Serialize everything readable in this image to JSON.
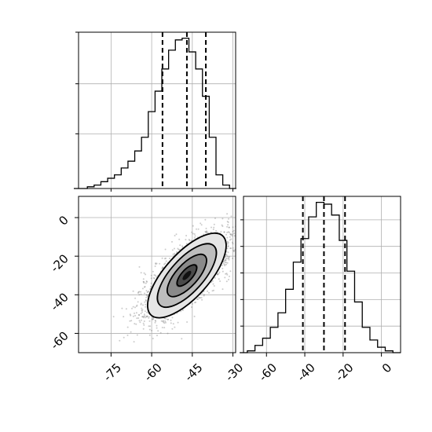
{
  "chart_data": [
    {
      "type": "histogram",
      "variable": "x",
      "x": [
        -87.5,
        -85,
        -82.5,
        -80,
        -77.5,
        -75,
        -72.5,
        -70,
        -67.5,
        -65,
        -62.5,
        -60,
        -57.5,
        -55,
        -52.5,
        -50,
        -47.5,
        -45,
        -42.5,
        -40,
        -37.5,
        -35,
        -32.5,
        -30
      ],
      "counts": [
        0,
        0,
        1,
        2,
        4,
        6,
        8,
        12,
        16,
        22,
        30,
        45,
        57,
        70,
        81,
        87,
        88,
        80,
        70,
        54,
        30,
        8,
        2,
        0
      ],
      "quantiles": [
        -56,
        -47,
        -40
      ],
      "xlim": [
        -87,
        -29
      ],
      "grid": true,
      "y_tick_labels_shown": false
    },
    {
      "type": "heatmap",
      "variables": [
        "x",
        "y"
      ],
      "xlim": [
        -87,
        -29
      ],
      "ylim": [
        -70,
        11
      ],
      "x_ticks": [
        "-75",
        "-60",
        "-45",
        "-30"
      ],
      "y_ticks": [
        "0",
        "-20",
        "-40",
        "-60"
      ],
      "x_tick_values": [
        -75,
        -60,
        -45,
        -30
      ],
      "y_tick_values": [
        0,
        -20,
        -40,
        -60
      ],
      "center": [
        -47,
        -30
      ],
      "sigma": [
        8.5,
        11.5
      ],
      "correlation": 0.75,
      "contour_levels": [
        "0.5 sigma",
        "1 sigma",
        "1.5 sigma",
        "2 sigma"
      ],
      "grid": true
    },
    {
      "type": "histogram",
      "variable": "y",
      "x": [
        -72,
        -68,
        -64,
        -60,
        -56,
        -52,
        -48,
        -44,
        -40,
        -36,
        -32,
        -28,
        -24,
        -20,
        -16,
        -12,
        -8,
        -4,
        0,
        4,
        8
      ],
      "counts": [
        0,
        1,
        4,
        8,
        14,
        22,
        35,
        50,
        63,
        75,
        83,
        82,
        76,
        62,
        45,
        28,
        14,
        7,
        3,
        1,
        0
      ],
      "quantiles": [
        -41,
        -30,
        -19
      ],
      "xlim": [
        -72,
        10
      ],
      "x_ticks": [
        "-60",
        "-40",
        "-20",
        "0"
      ],
      "x_tick_values": [
        -60,
        -40,
        -20,
        0
      ],
      "grid": true,
      "y_tick_labels_shown": false
    }
  ]
}
